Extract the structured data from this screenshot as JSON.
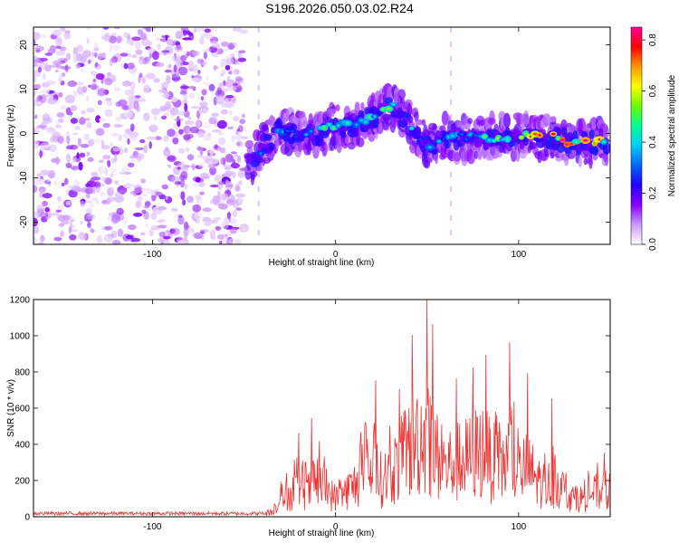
{
  "chart_data": [
    {
      "type": "heatmap",
      "title": "S196.2026.050.03.02.R24",
      "xlabel": "Height of straight line (km)",
      "ylabel": "Frequency (Hz)",
      "xlim": [
        -165,
        150
      ],
      "ylim": [
        -25,
        24
      ],
      "xticks": [
        -100,
        0,
        100
      ],
      "xtick_labels": [
        "-100",
        "0",
        "100"
      ],
      "yticks": [
        -20,
        -10,
        0,
        10,
        20
      ],
      "ytick_labels": [
        "-20",
        "-10",
        "0",
        "10",
        "20"
      ],
      "colorbar": {
        "label": "Normalized spectral amplitude",
        "range": [
          0,
          0.85
        ],
        "ticks": [
          0,
          0.2,
          0.4,
          0.6,
          0.8
        ],
        "tick_labels": [
          "0.0",
          "0.2",
          "0.4",
          "0.6",
          "0.8"
        ],
        "colormap": [
          "#ffffff",
          "#cc99ff",
          "#8800ff",
          "#2200ff",
          "#0066ff",
          "#00ccff",
          "#00ff99",
          "#66ff00",
          "#ffff00",
          "#ff9900",
          "#ff0000",
          "#ff0099"
        ]
      },
      "ridge": {
        "x": [
          -48,
          -40,
          -30,
          -20,
          -10,
          0,
          10,
          20,
          30,
          35,
          40,
          50,
          60,
          70,
          80,
          90,
          100,
          110,
          120,
          130,
          140,
          148
        ],
        "freq": [
          -7,
          -3,
          1,
          0,
          0,
          2,
          1,
          4,
          6,
          5,
          2,
          -3,
          -1,
          -1,
          -1,
          -0.5,
          -0.5,
          -1,
          -1,
          -2,
          -2,
          -2
        ],
        "amplitude": [
          0.35,
          0.3,
          0.4,
          0.45,
          0.45,
          0.5,
          0.45,
          0.45,
          0.55,
          0.5,
          0.35,
          0.3,
          0.4,
          0.4,
          0.45,
          0.5,
          0.8,
          0.75,
          0.7,
          0.75,
          0.65,
          0.6
        ]
      },
      "noise_region_x": [
        -165,
        -50
      ]
    },
    {
      "type": "line",
      "xlabel": "Height of straight line (km)",
      "ylabel": "SNR (10 * v/v)",
      "xlim": [
        -165,
        150
      ],
      "ylim": [
        0,
        1200
      ],
      "xticks": [
        -100,
        0,
        100
      ],
      "xtick_labels": [
        "-100",
        "0",
        "100"
      ],
      "yticks": [
        0,
        200,
        400,
        600,
        800,
        1000,
        1200
      ],
      "ytick_labels": [
        "0",
        "200",
        "400",
        "600",
        "800",
        "1000",
        "1200"
      ],
      "series": [
        {
          "name": "SNR",
          "color": "#ee3333",
          "x": [
            -165,
            -150,
            -140,
            -130,
            -120,
            -110,
            -100,
            -90,
            -80,
            -70,
            -60,
            -50,
            -40,
            -35,
            -30,
            -25,
            -20,
            -15,
            -10,
            -5,
            0,
            5,
            10,
            15,
            20,
            25,
            30,
            35,
            40,
            45,
            50,
            55,
            60,
            65,
            70,
            75,
            80,
            85,
            90,
            95,
            100,
            105,
            110,
            115,
            120,
            125,
            130,
            135,
            140,
            145,
            150
          ],
          "y": [
            15,
            20,
            15,
            20,
            15,
            20,
            15,
            18,
            15,
            20,
            15,
            20,
            15,
            40,
            150,
            180,
            250,
            200,
            300,
            220,
            150,
            200,
            250,
            350,
            400,
            300,
            350,
            450,
            550,
            650,
            650,
            500,
            400,
            450,
            450,
            500,
            550,
            450,
            400,
            500,
            350,
            400,
            300,
            250,
            300,
            200,
            150,
            150,
            200,
            200,
            200
          ],
          "peaks": [
            {
              "x": -20,
              "y": 460
            },
            {
              "x": -13,
              "y": 540
            },
            {
              "x": 22,
              "y": 750
            },
            {
              "x": 35,
              "y": 700
            },
            {
              "x": 42,
              "y": 1000
            },
            {
              "x": 50,
              "y": 1200
            },
            {
              "x": 53,
              "y": 1060
            },
            {
              "x": 66,
              "y": 760
            },
            {
              "x": 75,
              "y": 820
            },
            {
              "x": 82,
              "y": 890
            },
            {
              "x": 95,
              "y": 960
            },
            {
              "x": 105,
              "y": 790
            },
            {
              "x": 118,
              "y": 650
            },
            {
              "x": 147,
              "y": 350
            }
          ]
        }
      ]
    }
  ]
}
